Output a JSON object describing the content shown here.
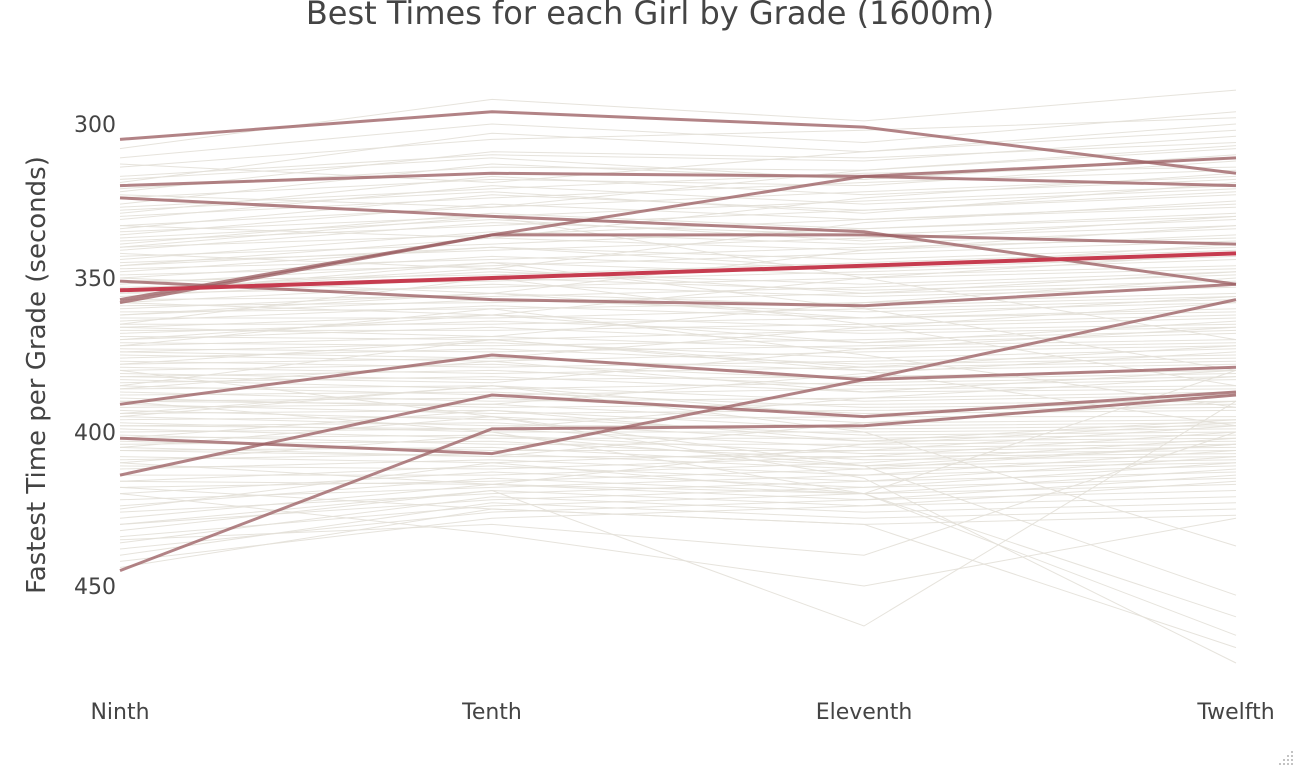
{
  "chart_data": {
    "type": "line",
    "title": "Best Times for each Girl by Grade (1600m)",
    "xlabel": "",
    "ylabel": "Fastest Time per Grade (seconds)",
    "categories": [
      "Ninth",
      "Tenth",
      "Eleventh",
      "Twelfth"
    ],
    "y_ticks": [
      300,
      350,
      400,
      450
    ],
    "ylim": [
      288,
      477
    ],
    "y_reversed": true,
    "grid": false,
    "legend": "none",
    "colors": {
      "background_lines": "#e3e0d8",
      "highlight_lines": "#9c6064",
      "average_line": "#c63c4f"
    },
    "highlighted_series": [
      {
        "values": [
          305,
          296,
          301,
          316
        ]
      },
      {
        "values": [
          320,
          316,
          317,
          320
        ]
      },
      {
        "values": [
          324,
          330,
          335,
          352
        ]
      },
      {
        "values": [
          357,
          336,
          336,
          339
        ]
      },
      {
        "values": [
          358,
          336,
          317,
          311
        ]
      },
      {
        "values": [
          351,
          357,
          359,
          352
        ]
      },
      {
        "values": [
          391,
          375,
          383,
          357
        ]
      },
      {
        "values": [
          402,
          407,
          383,
          379
        ]
      },
      {
        "values": [
          414,
          388,
          395,
          387
        ]
      },
      {
        "values": [
          445,
          399,
          398,
          388
        ]
      }
    ],
    "average_series": {
      "values": [
        354,
        350,
        346,
        342
      ]
    },
    "background_series": [
      [
        308,
        292,
        299,
        289
      ],
      [
        311,
        300,
        306,
        296
      ],
      [
        314,
        305,
        302,
        298
      ],
      [
        317,
        310,
        312,
        304
      ],
      [
        319,
        303,
        309,
        300
      ],
      [
        321,
        314,
        315,
        308
      ],
      [
        322,
        309,
        311,
        306
      ],
      [
        324,
        318,
        320,
        312
      ],
      [
        326,
        313,
        318,
        310
      ],
      [
        327,
        321,
        316,
        314
      ],
      [
        329,
        317,
        323,
        318
      ],
      [
        330,
        324,
        319,
        315
      ],
      [
        331,
        320,
        326,
        321
      ],
      [
        333,
        327,
        322,
        317
      ],
      [
        334,
        323,
        328,
        323
      ],
      [
        335,
        330,
        325,
        320
      ],
      [
        336,
        326,
        331,
        326
      ],
      [
        338,
        333,
        328,
        322
      ],
      [
        339,
        329,
        334,
        329
      ],
      [
        340,
        336,
        331,
        327
      ],
      [
        341,
        332,
        336,
        331
      ],
      [
        343,
        339,
        334,
        330
      ],
      [
        344,
        335,
        339,
        334
      ],
      [
        345,
        341,
        337,
        333
      ],
      [
        346,
        337,
        341,
        336
      ],
      [
        347,
        344,
        340,
        337
      ],
      [
        348,
        340,
        344,
        340
      ],
      [
        349,
        346,
        342,
        338
      ],
      [
        350,
        343,
        347,
        343
      ],
      [
        351,
        349,
        345,
        341
      ],
      [
        352,
        345,
        349,
        346
      ],
      [
        353,
        351,
        348,
        344
      ],
      [
        354,
        348,
        352,
        348
      ],
      [
        355,
        353,
        350,
        347
      ],
      [
        356,
        350,
        354,
        351
      ],
      [
        357,
        356,
        353,
        349
      ],
      [
        358,
        352,
        356,
        353
      ],
      [
        359,
        358,
        355,
        352
      ],
      [
        360,
        355,
        359,
        356
      ],
      [
        361,
        360,
        358,
        355
      ],
      [
        362,
        357,
        361,
        358
      ],
      [
        363,
        363,
        360,
        357
      ],
      [
        364,
        359,
        363,
        361
      ],
      [
        365,
        365,
        363,
        360
      ],
      [
        366,
        362,
        366,
        363
      ],
      [
        367,
        367,
        365,
        362
      ],
      [
        368,
        364,
        368,
        366
      ],
      [
        369,
        370,
        367,
        365
      ],
      [
        370,
        366,
        371,
        368
      ],
      [
        371,
        372,
        370,
        367
      ],
      [
        372,
        369,
        373,
        371
      ],
      [
        373,
        374,
        372,
        370
      ],
      [
        374,
        371,
        376,
        373
      ],
      [
        375,
        377,
        374,
        372
      ],
      [
        376,
        373,
        378,
        376
      ],
      [
        377,
        379,
        377,
        375
      ],
      [
        378,
        376,
        380,
        378
      ],
      [
        379,
        381,
        379,
        377
      ],
      [
        380,
        378,
        383,
        381
      ],
      [
        381,
        383,
        382,
        380
      ],
      [
        382,
        380,
        385,
        383
      ],
      [
        383,
        386,
        384,
        382
      ],
      [
        384,
        382,
        387,
        386
      ],
      [
        385,
        388,
        386,
        385
      ],
      [
        386,
        385,
        390,
        388
      ],
      [
        387,
        390,
        389,
        387
      ],
      [
        388,
        387,
        392,
        391
      ],
      [
        389,
        392,
        391,
        390
      ],
      [
        390,
        389,
        394,
        393
      ],
      [
        391,
        394,
        393,
        392
      ],
      [
        392,
        391,
        397,
        396
      ],
      [
        393,
        396,
        395,
        395
      ],
      [
        394,
        393,
        399,
        398
      ],
      [
        395,
        398,
        398,
        397
      ],
      [
        396,
        395,
        401,
        400
      ],
      [
        397,
        400,
        400,
        399
      ],
      [
        398,
        397,
        403,
        402
      ],
      [
        399,
        402,
        402,
        401
      ],
      [
        400,
        399,
        405,
        404
      ],
      [
        401,
        404,
        404,
        403
      ],
      [
        402,
        401,
        407,
        406
      ],
      [
        403,
        406,
        406,
        405
      ],
      [
        404,
        403,
        409,
        408
      ],
      [
        405,
        408,
        408,
        407
      ],
      [
        406,
        405,
        411,
        409
      ],
      [
        408,
        410,
        406,
        398
      ],
      [
        409,
        407,
        412,
        410
      ],
      [
        411,
        412,
        408,
        400
      ],
      [
        412,
        409,
        414,
        411
      ],
      [
        414,
        414,
        410,
        402
      ],
      [
        416,
        411,
        416,
        413
      ],
      [
        418,
        416,
        412,
        404
      ],
      [
        420,
        413,
        418,
        415
      ],
      [
        422,
        418,
        414,
        406
      ],
      [
        424,
        415,
        420,
        417
      ],
      [
        426,
        420,
        416,
        408
      ],
      [
        428,
        417,
        422,
        419
      ],
      [
        430,
        422,
        418,
        410
      ],
      [
        432,
        419,
        424,
        421
      ],
      [
        434,
        424,
        420,
        412
      ],
      [
        436,
        421,
        426,
        423
      ],
      [
        438,
        426,
        422,
        414
      ],
      [
        440,
        423,
        428,
        425
      ],
      [
        442,
        428,
        424,
        416
      ],
      [
        444,
        425,
        430,
        427
      ],
      [
        313,
        319,
        309,
        302
      ],
      [
        318,
        311,
        318,
        311
      ],
      [
        323,
        327,
        315,
        307
      ],
      [
        328,
        322,
        329,
        319
      ],
      [
        333,
        337,
        324,
        316
      ],
      [
        337,
        331,
        338,
        330
      ],
      [
        342,
        347,
        332,
        325
      ],
      [
        346,
        340,
        347,
        339
      ],
      [
        350,
        355,
        341,
        333
      ],
      [
        354,
        347,
        355,
        348
      ],
      [
        358,
        362,
        350,
        342
      ],
      [
        362,
        355,
        363,
        356
      ],
      [
        366,
        369,
        358,
        350
      ],
      [
        370,
        362,
        371,
        364
      ],
      [
        374,
        376,
        366,
        358
      ],
      [
        378,
        370,
        379,
        372
      ],
      [
        382,
        384,
        373,
        366
      ],
      [
        386,
        377,
        387,
        380
      ],
      [
        390,
        391,
        381,
        374
      ],
      [
        394,
        385,
        395,
        388
      ],
      [
        398,
        399,
        389,
        382
      ],
      [
        402,
        393,
        403,
        396
      ],
      [
        406,
        408,
        397,
        390
      ],
      [
        410,
        401,
        411,
        404
      ],
      [
        416,
        417,
        404,
        397
      ],
      [
        340,
        330,
        350,
        370
      ],
      [
        355,
        345,
        360,
        380
      ],
      [
        365,
        350,
        365,
        385
      ],
      [
        372,
        360,
        375,
        392
      ],
      [
        385,
        370,
        380,
        398
      ],
      [
        395,
        385,
        400,
        437
      ],
      [
        405,
        395,
        411,
        453
      ],
      [
        410,
        417,
        420,
        466
      ],
      [
        418,
        425,
        430,
        470
      ],
      [
        420,
        433,
        450,
        428
      ],
      [
        430,
        419,
        463,
        390
      ],
      [
        425,
        410,
        420,
        380
      ],
      [
        390,
        400,
        420,
        460
      ],
      [
        380,
        395,
        415,
        475
      ],
      [
        435,
        430,
        440,
        400
      ]
    ]
  }
}
